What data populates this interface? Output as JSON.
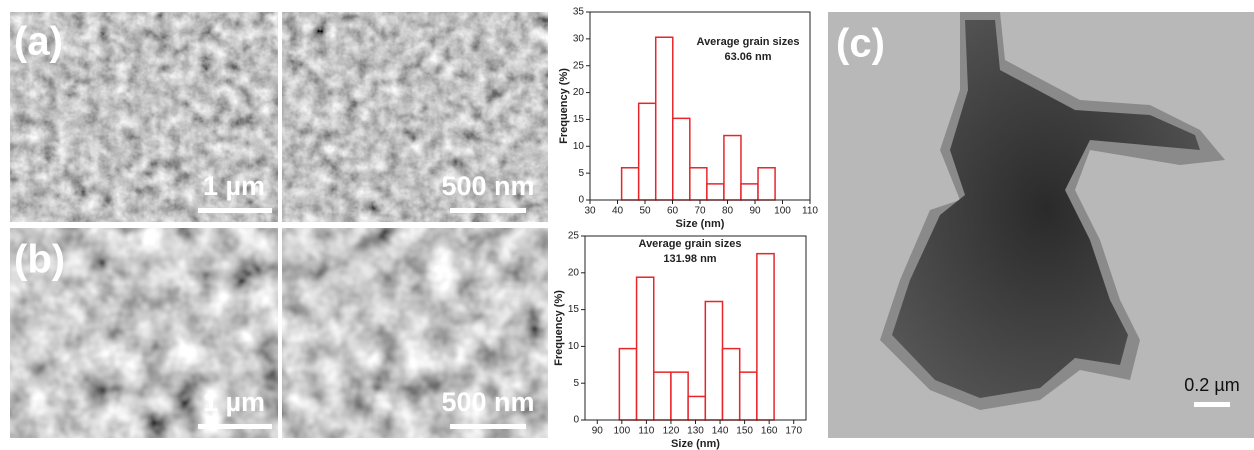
{
  "panel_labels": [
    "(a)",
    "(b)",
    "(c)"
  ],
  "scale_bars": [
    "1 µm",
    "500 nm",
    "1 µm",
    "500 nm",
    "0.2 µm"
  ],
  "chart_data": [
    {
      "type": "histogram",
      "xlabel": "Size (nm)",
      "ylabel": "Frequency (%)",
      "annotation": [
        "Average grain sizes",
        "63.06 nm"
      ],
      "bins": [
        41.5,
        47.7,
        53.9,
        60.1,
        66.3,
        72.5,
        78.7,
        84.9,
        91.1,
        97.3
      ],
      "values": [
        6,
        18,
        30.3,
        15.2,
        6,
        3,
        12,
        3,
        6
      ],
      "color": "#e8262a",
      "xlim": [
        30,
        110
      ],
      "xticks": [
        30,
        40,
        50,
        60,
        70,
        80,
        90,
        100,
        110
      ],
      "ylim": [
        0,
        35
      ],
      "yticks": [
        0,
        5,
        10,
        15,
        20,
        25,
        30,
        35
      ]
    },
    {
      "type": "histogram",
      "xlabel": "Size (nm)",
      "ylabel": "Frequency (%)",
      "annotation": [
        "Average grain sizes",
        "131.98 nm"
      ],
      "bins": [
        99,
        106,
        113,
        120,
        127,
        134,
        141,
        148,
        155,
        162
      ],
      "values": [
        9.7,
        19.4,
        6.5,
        6.5,
        3.2,
        16.1,
        9.7,
        6.5,
        22.6
      ],
      "color": "#e8262a",
      "xlim": [
        85,
        175
      ],
      "xticks": [
        90,
        100,
        110,
        120,
        130,
        140,
        150,
        160,
        170
      ],
      "ylim": [
        0,
        25
      ],
      "yticks": [
        0,
        5,
        10,
        15,
        20,
        25
      ]
    }
  ]
}
